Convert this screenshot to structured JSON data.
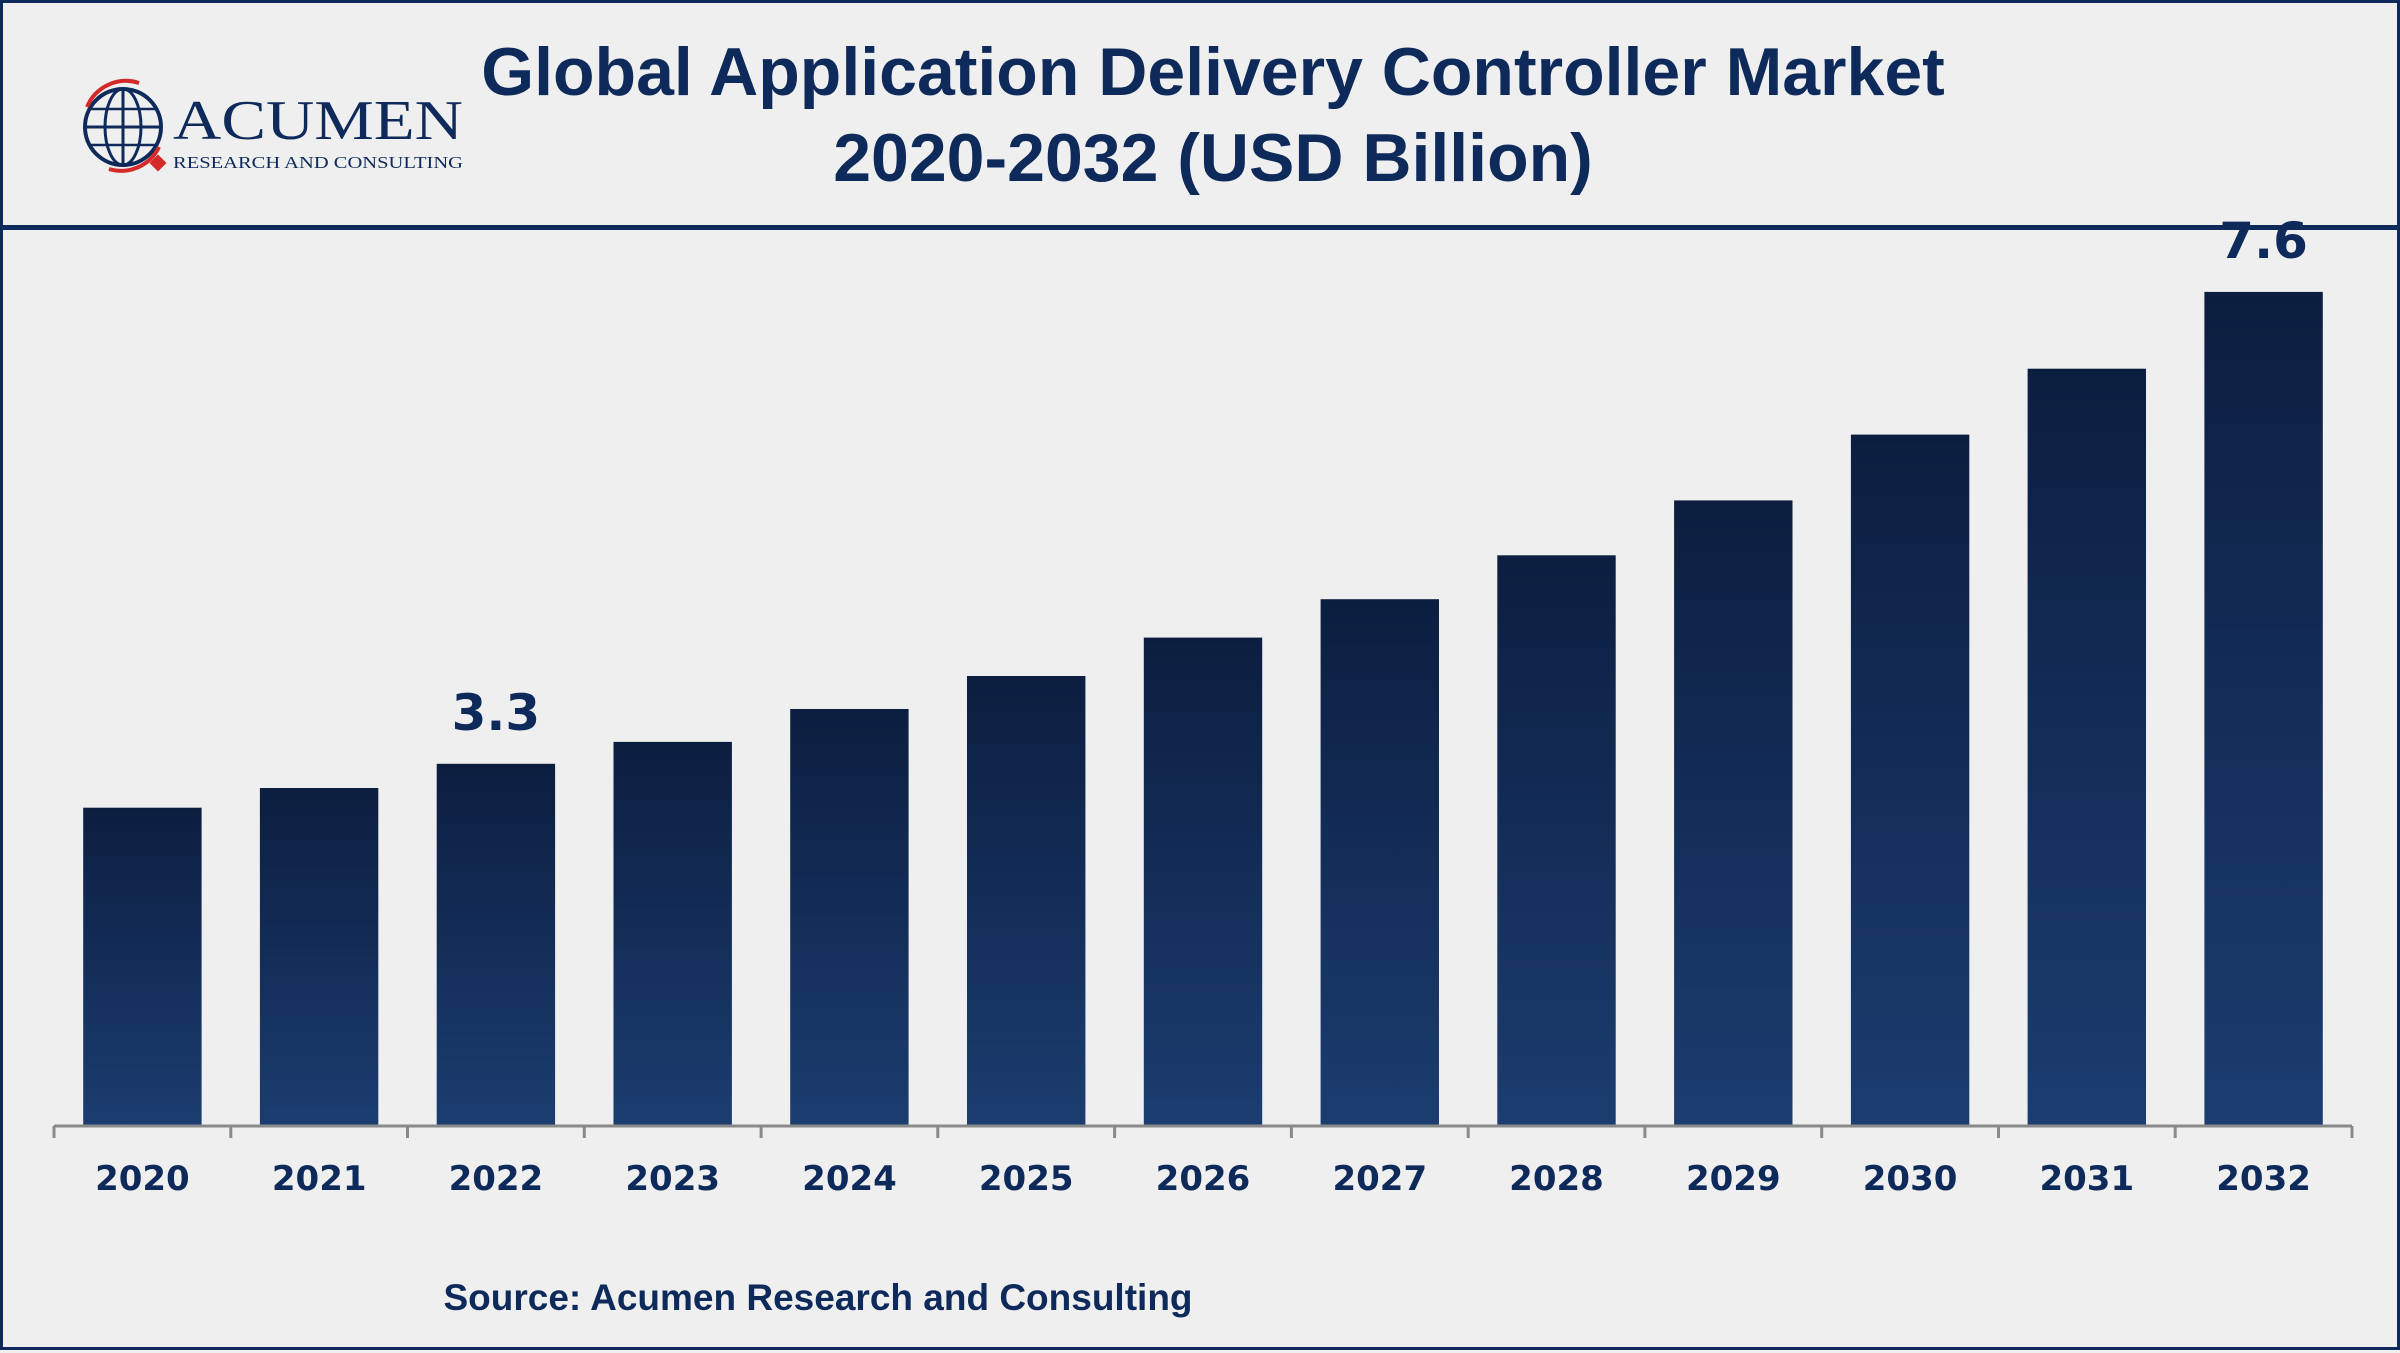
{
  "header": {
    "title_line1": "Global Application Delivery Controller Market",
    "title_line2": "2020-2032 (USD Billion)"
  },
  "logo": {
    "name": "ACUMEN",
    "tagline": "RESEARCH AND CONSULTING"
  },
  "source": "Source: Acumen Research and Consulting",
  "colors": {
    "navy": "#0e2a5a",
    "bar_top": "#0c1e40",
    "bar_bottom": "#1b3d70",
    "axis": "#8a8a8a",
    "logo_red": "#d42a2a"
  },
  "chart_data": {
    "type": "bar",
    "categories": [
      "2020",
      "2021",
      "2022",
      "2023",
      "2024",
      "2025",
      "2026",
      "2027",
      "2028",
      "2029",
      "2030",
      "2031",
      "2032"
    ],
    "values": [
      2.9,
      3.08,
      3.3,
      3.5,
      3.8,
      4.1,
      4.45,
      4.8,
      5.2,
      5.7,
      6.3,
      6.9,
      7.6
    ],
    "data_labels": [
      {
        "category": "2022",
        "text": "3.3"
      },
      {
        "category": "2032",
        "text": "7.6"
      }
    ],
    "title": "Global Application Delivery Controller Market 2020-2032 (USD Billion)",
    "xlabel": "",
    "ylabel": "",
    "ylim": [
      0,
      8
    ],
    "grid": false,
    "legend": "none"
  }
}
